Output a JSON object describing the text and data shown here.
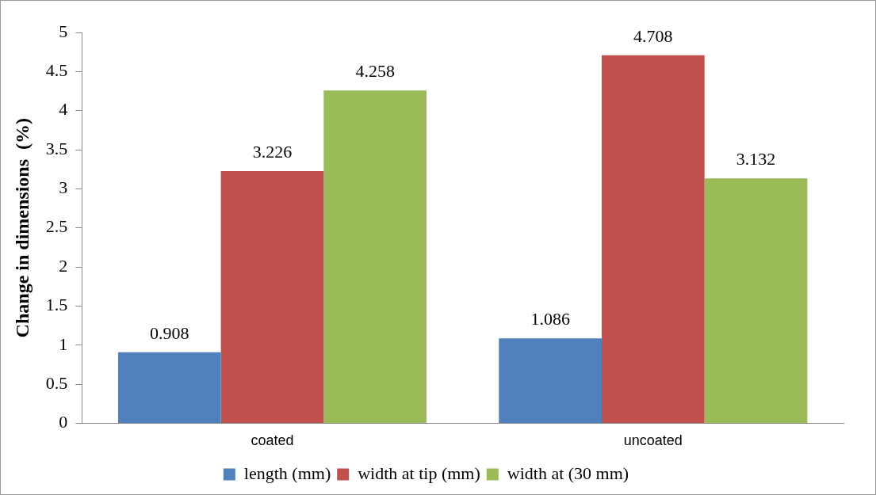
{
  "chart_data": {
    "type": "bar",
    "ylabel": "Change in dimensions  (%)",
    "categories": [
      "coated",
      "uncoated"
    ],
    "series": [
      {
        "name": "length (mm)",
        "color": "#4f81bd",
        "values": [
          0.908,
          1.086
        ]
      },
      {
        "name": "width at tip (mm)",
        "color": "#c0504d",
        "values": [
          3.226,
          4.708
        ]
      },
      {
        "name": "width at (30 mm)",
        "color": "#9bbb59",
        "values": [
          4.258,
          3.132
        ]
      }
    ],
    "ylim": [
      0,
      5
    ],
    "yticks": [
      0,
      0.5,
      1,
      1.5,
      2,
      2.5,
      3,
      3.5,
      4,
      4.5,
      5
    ],
    "data_labels": true,
    "grid": false,
    "legend": "bottom"
  }
}
